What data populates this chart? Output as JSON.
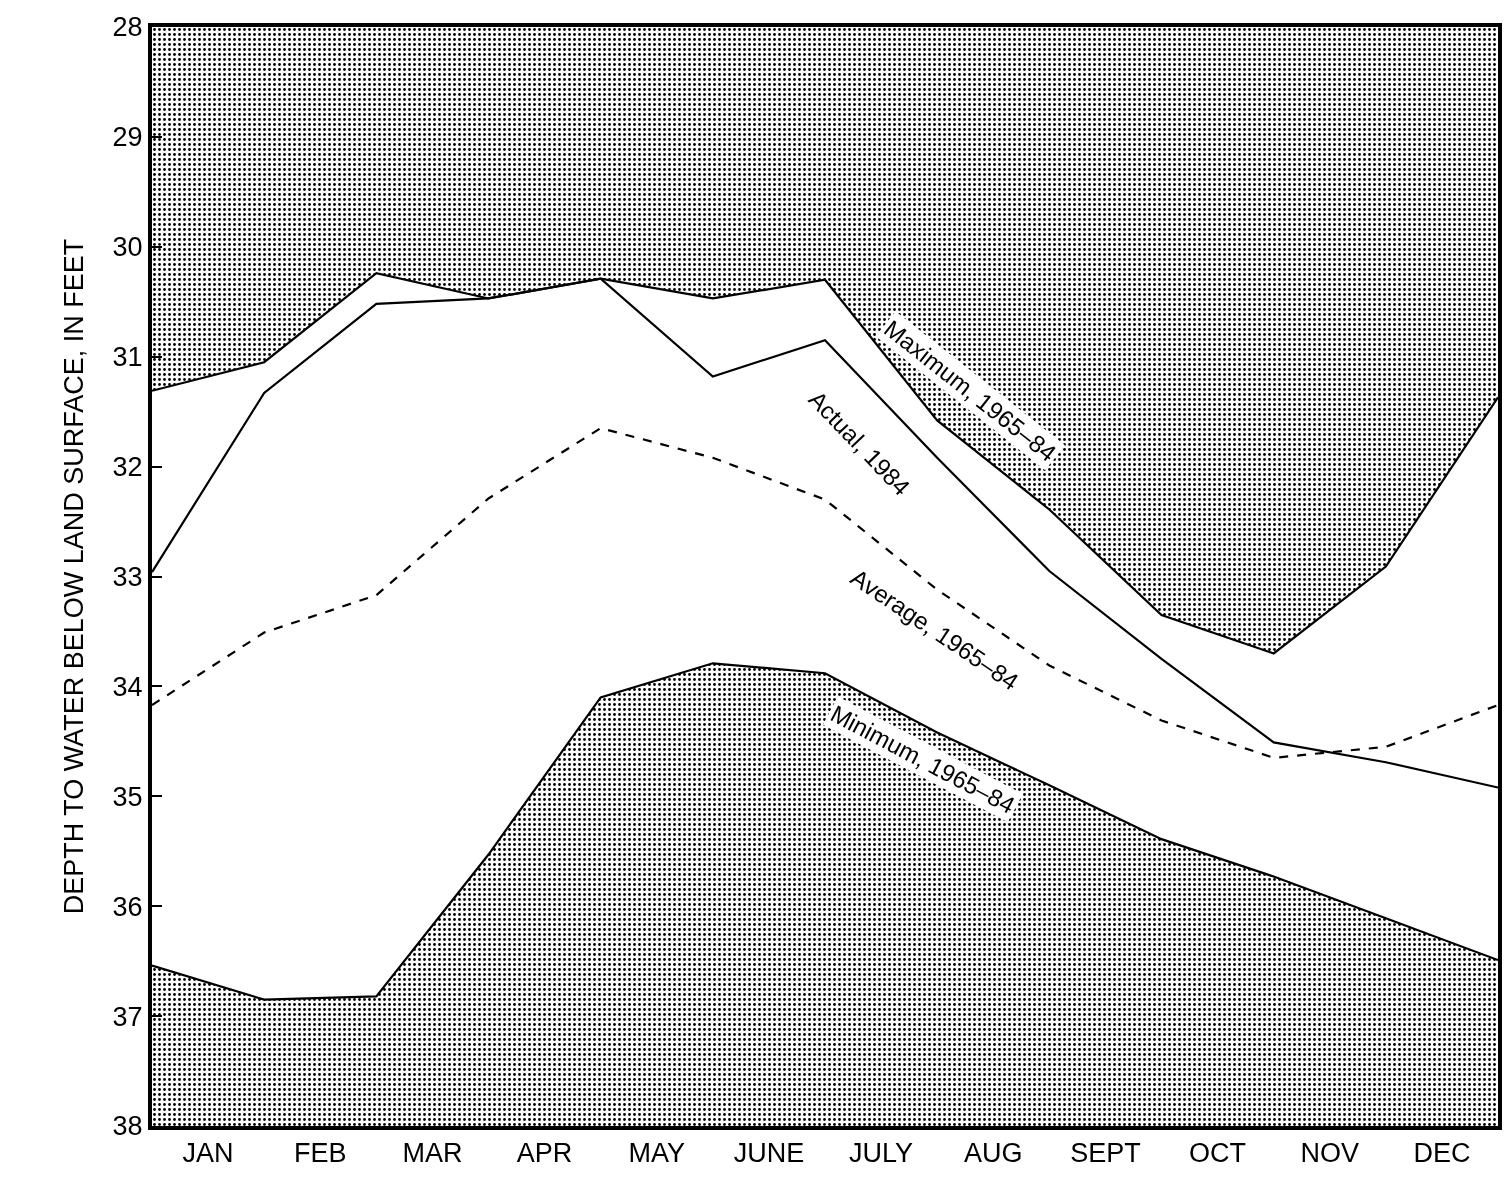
{
  "chart_data": {
    "type": "line",
    "ylabel": "DEPTH TO WATER BELOW LAND SURFACE, IN FEET",
    "categories": [
      null,
      "JAN",
      null,
      "FEB",
      null,
      "MAR",
      null,
      "APR",
      null,
      "MAY",
      null,
      "JUNE",
      null,
      "JULY",
      null,
      "AUG",
      null,
      "SEPT",
      null,
      "OCT",
      null,
      "NOV",
      null,
      "DEC",
      null
    ],
    "ylim": [
      38,
      28
    ],
    "yticks": [
      28,
      29,
      30,
      31,
      32,
      33,
      34,
      35,
      36,
      37,
      38
    ],
    "grid": false,
    "legend": false,
    "marker": "none",
    "series": [
      {
        "name": "Maximum, 1965–84",
        "type": "area",
        "color": "#000000",
        "line_style": "solid",
        "values": [
          31.31,
          null,
          31.05,
          null,
          30.24,
          null,
          30.47,
          null,
          30.29,
          null,
          30.47,
          null,
          30.3,
          null,
          31.58,
          null,
          32.39,
          null,
          33.35,
          null,
          33.7,
          null,
          32.91,
          null,
          31.37
        ]
      },
      {
        "name": "Actual, 1984",
        "color": "#000000",
        "line_style": "solid",
        "values": [
          32.96,
          null,
          31.33,
          null,
          30.52,
          null,
          30.47,
          null,
          30.29,
          null,
          31.18,
          null,
          30.85,
          null,
          31.92,
          null,
          32.95,
          null,
          33.75,
          null,
          34.51,
          null,
          34.69,
          null,
          34.92
        ]
      },
      {
        "name": "Average, 1965–84",
        "color": "#000000",
        "line_style": "dashed",
        "values": [
          34.17,
          null,
          33.51,
          null,
          33.17,
          null,
          32.29,
          null,
          31.65,
          null,
          31.92,
          null,
          32.3,
          null,
          33.12,
          null,
          33.81,
          null,
          34.31,
          null,
          34.65,
          null,
          34.55,
          null,
          34.17
        ]
      },
      {
        "name": "Minimum, 1965–84",
        "type": "area",
        "color": "#000000",
        "line_style": "solid",
        "values": [
          36.54,
          null,
          36.85,
          null,
          36.82,
          null,
          35.53,
          null,
          34.1,
          null,
          33.79,
          null,
          33.88,
          null,
          34.42,
          null,
          34.9,
          null,
          35.39,
          null,
          35.73,
          null,
          36.11,
          null,
          36.49
        ]
      }
    ]
  }
}
